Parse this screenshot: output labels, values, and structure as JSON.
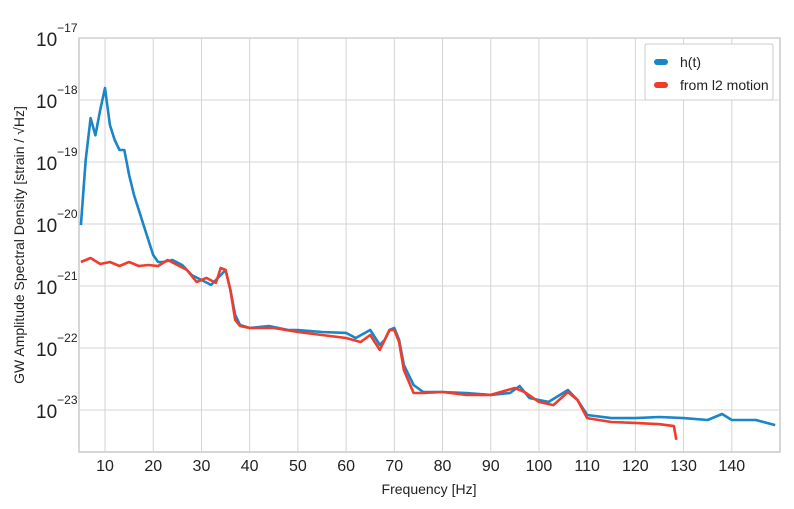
{
  "chart_data": {
    "type": "line",
    "xlabel": "Frequency [Hz]",
    "ylabel": "GW Amplitude Spectral Density [strain / √Hz]",
    "xlim": [
      4.6,
      150
    ],
    "xticks": [
      10,
      20,
      30,
      40,
      50,
      60,
      70,
      80,
      90,
      100,
      110,
      120,
      130,
      140
    ],
    "ylim": [
      2.1e-24,
      1e-17
    ],
    "log_y": true,
    "yticks": [
      {
        "value": 1e-17,
        "label": "10",
        "exponent": "−17"
      },
      {
        "value": 1e-18,
        "label": "10",
        "exponent": "−18"
      },
      {
        "value": 1e-19,
        "label": "10",
        "exponent": "−19"
      },
      {
        "value": 1e-20,
        "label": "10",
        "exponent": "−20"
      },
      {
        "value": 1e-21,
        "label": "10",
        "exponent": "−21"
      },
      {
        "value": 1e-22,
        "label": "10",
        "exponent": "−22"
      },
      {
        "value": 1e-23,
        "label": "10",
        "exponent": "−23"
      }
    ],
    "grid": true,
    "legend": "upper right",
    "series": [
      {
        "name": "h(t)",
        "color": "#1a85c8",
        "x": [
          5,
          6,
          7,
          8,
          9,
          10,
          11,
          12,
          13,
          14,
          15,
          16,
          17,
          18,
          19,
          20,
          21,
          22,
          24,
          26,
          28,
          30,
          32,
          34,
          35,
          36,
          37,
          38,
          40,
          44,
          48,
          50,
          55,
          60,
          62,
          65,
          67,
          68,
          69,
          70,
          71,
          72,
          74,
          76,
          80,
          85,
          90,
          94,
          96,
          98,
          100,
          102,
          104,
          106,
          108,
          110,
          115,
          120,
          125,
          130,
          135,
          138,
          140,
          145,
          149
        ],
        "values": [
          9.6e-21,
          1.08e-19,
          5.1e-19,
          2.7e-19,
          6.9e-19,
          1.56e-18,
          3.95e-19,
          2.26e-19,
          1.56e-19,
          1.56e-19,
          6.2e-20,
          2.94e-20,
          1.68e-20,
          9.6e-21,
          5.5e-21,
          3.16e-21,
          2.44e-21,
          2.44e-21,
          2.63e-21,
          2.18e-21,
          1.5e-21,
          1.25e-21,
          1.04e-21,
          1.5e-21,
          1.81e-21,
          8.6e-22,
          3.4e-22,
          2.35e-22,
          2.1e-22,
          2.26e-22,
          1.95e-22,
          1.95e-22,
          1.81e-22,
          1.75e-22,
          1.45e-22,
          1.95e-22,
          1.12e-22,
          1.35e-22,
          1.95e-22,
          2.1e-22,
          1.35e-22,
          5.3e-23,
          2.53e-23,
          1.95e-23,
          1.95e-23,
          1.88e-23,
          1.75e-23,
          1.88e-23,
          2.44e-23,
          1.56e-23,
          1.45e-23,
          1.35e-23,
          1.68e-23,
          2.1e-23,
          1.45e-23,
          8.3e-24,
          7.4e-24,
          7.4e-24,
          7.7e-24,
          7.4e-24,
          6.9e-24,
          8.6e-24,
          6.9e-24,
          6.9e-24,
          5.7e-24
        ]
      },
      {
        "name": "from l2 motion",
        "color": "#f03c2c",
        "x": [
          5,
          7,
          9,
          11,
          13,
          15,
          17,
          19,
          21,
          23,
          25,
          27,
          29,
          31,
          33,
          34,
          35,
          36,
          37,
          38,
          40,
          45,
          50,
          55,
          60,
          63,
          65,
          67,
          69,
          70,
          71,
          72,
          74,
          76,
          80,
          85,
          90,
          95,
          97,
          100,
          103,
          106,
          108,
          110,
          115,
          120,
          125,
          128,
          128.5
        ],
        "values": [
          2.44e-21,
          2.83e-21,
          2.26e-21,
          2.44e-21,
          2.1e-21,
          2.44e-21,
          2.1e-21,
          2.18e-21,
          2.1e-21,
          2.63e-21,
          2.18e-21,
          1.81e-21,
          1.16e-21,
          1.35e-21,
          1.12e-21,
          1.95e-21,
          1.81e-21,
          8.6e-22,
          2.83e-22,
          2.26e-22,
          2.1e-22,
          2.1e-22,
          1.81e-22,
          1.62e-22,
          1.45e-22,
          1.25e-22,
          1.62e-22,
          9.3e-23,
          1.95e-22,
          1.95e-22,
          1.25e-22,
          4.4e-23,
          1.88e-23,
          1.88e-23,
          1.95e-23,
          1.75e-23,
          1.75e-23,
          2.26e-23,
          1.95e-23,
          1.35e-23,
          1.2e-23,
          1.95e-23,
          1.45e-23,
          7.4e-24,
          6.4e-24,
          6.2e-24,
          5.9e-24,
          5.5e-24,
          3.3e-24
        ]
      }
    ]
  }
}
